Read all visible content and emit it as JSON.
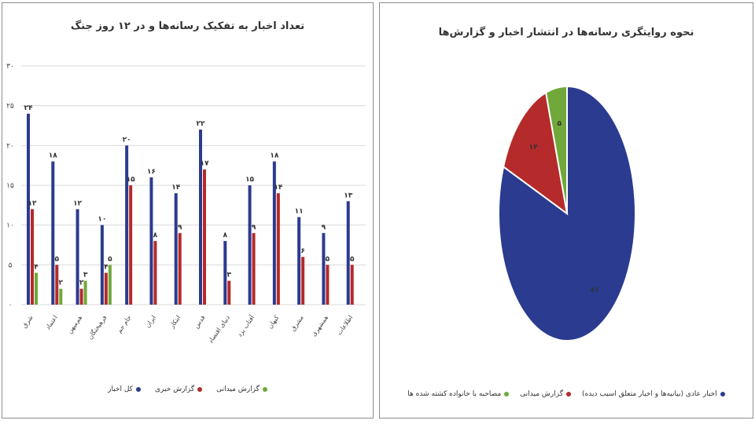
{
  "chart_data": [
    {
      "type": "bar",
      "title": "تعداد اخبار به تفکیک رسانه‌ها و در ۱۲ روز جنگ",
      "ylim": [
        0,
        30
      ],
      "yticks": [
        "۰",
        "۵",
        "۱۰",
        "۱۵",
        "۲۰",
        "۲۵",
        "۳۰"
      ],
      "ytick_values": [
        0,
        5,
        10,
        15,
        20,
        25,
        30
      ],
      "grid": true,
      "legend_position": "bottom",
      "categories": [
        "شرق",
        "اعتماد",
        "هم‌میهن",
        "فرهیختگان",
        "جام جم",
        "ایران",
        "ابتکار",
        "قدس",
        "دنیای اقتصاد",
        "آفتاب یزد",
        "کیهان",
        "مشرق",
        "همشهری",
        "اطلاعات"
      ],
      "series": [
        {
          "name": "کل اخبار",
          "color": "#2b3b8f",
          "values": [
            24,
            18,
            12,
            10,
            20,
            16,
            14,
            22,
            8,
            15,
            18,
            11,
            9,
            13
          ]
        },
        {
          "name": "گزارش خبری",
          "color": "#b52a2a",
          "values": [
            12,
            5,
            2,
            4,
            15,
            8,
            9,
            17,
            3,
            9,
            14,
            6,
            5,
            5
          ]
        },
        {
          "name": "گزارش میدانی",
          "color": "#70a83a",
          "values": [
            4,
            2,
            3,
            5,
            0,
            0,
            0,
            0,
            0,
            0,
            0,
            0,
            0,
            0
          ]
        }
      ],
      "data_labels": [
        [
          "۲۴",
          "۱۲",
          "۴"
        ],
        [
          "۱۸",
          "۵",
          "۲"
        ],
        [
          "۱۲",
          "۲",
          "۳"
        ],
        [
          "۱۰",
          "۴",
          "۵"
        ],
        [
          "۲۰",
          "۱۵",
          ""
        ],
        [
          "۱۶",
          "۸",
          ""
        ],
        [
          "۱۴",
          "۹",
          ""
        ],
        [
          "۲۲",
          "۱۷",
          ""
        ],
        [
          "۸",
          "۳",
          ""
        ],
        [
          "۱۵",
          "۹",
          ""
        ],
        [
          "۱۸",
          "۱۴",
          ""
        ],
        [
          "۱۱",
          "۶",
          ""
        ],
        [
          "۹",
          "۵",
          ""
        ],
        [
          "۱۳",
          "۵",
          ""
        ]
      ]
    },
    {
      "type": "pie",
      "title": "نحوه روایتگری رسانه‌ها در انتشار اخبار و گزارش‌ها",
      "legend_position": "bottom",
      "slices": [
        {
          "name": "اخبار عادی (بیانیه‌ها و اخبار متعلق اسیب دیده)",
          "value": 81,
          "label": "۸۱",
          "color": "#2b3b8f"
        },
        {
          "name": "گزارش میدانی",
          "value": 14,
          "label": "۱۴",
          "color": "#b52a2a"
        },
        {
          "name": "مصاحبه با خانواده کشته شده ها",
          "value": 5,
          "label": "۵",
          "color": "#70a83a"
        }
      ]
    }
  ]
}
